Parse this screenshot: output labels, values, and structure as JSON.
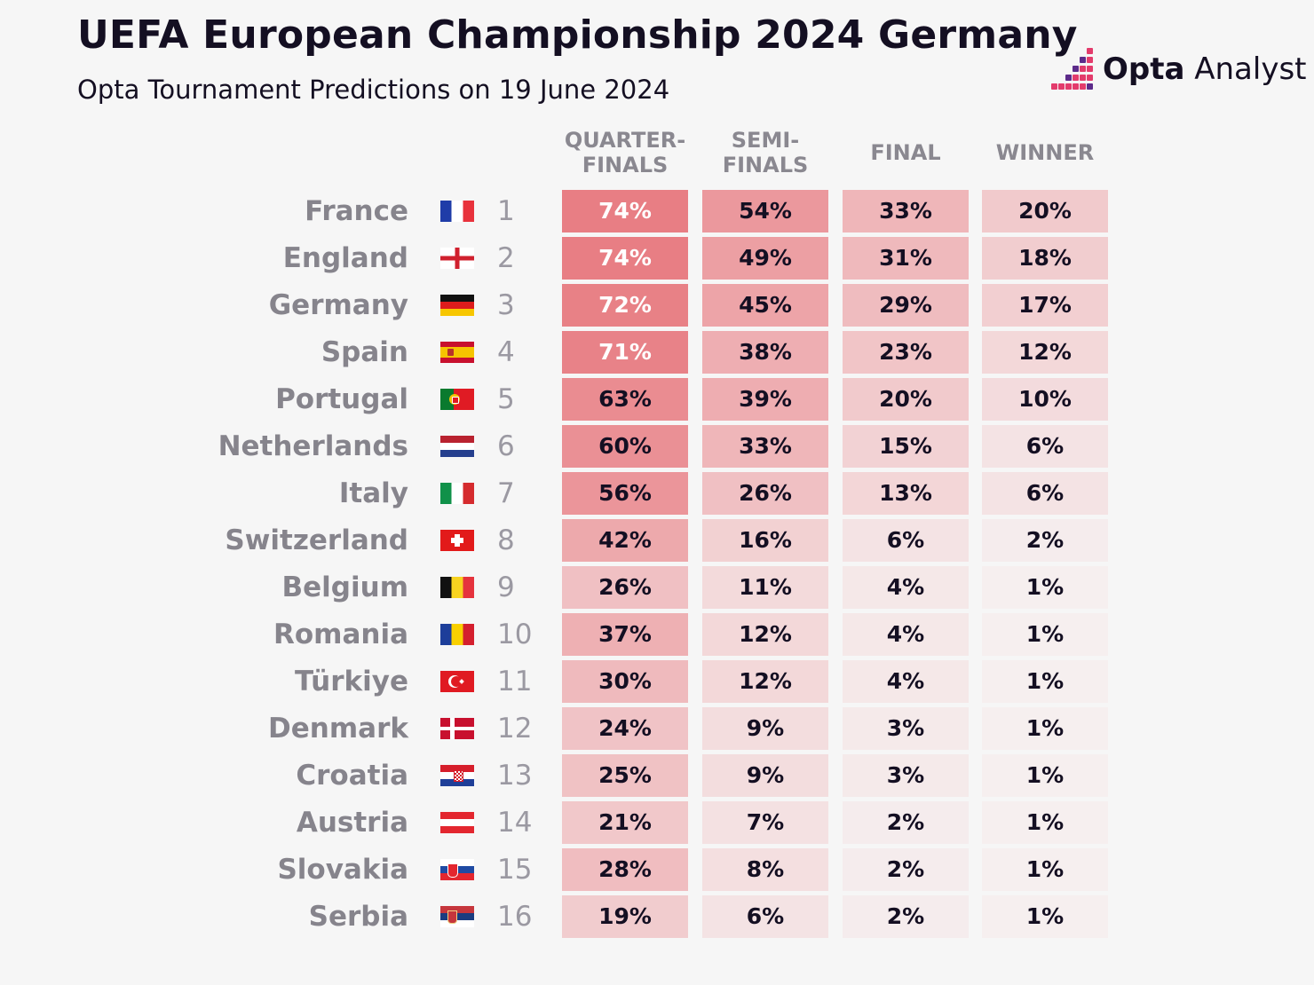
{
  "title": "UEFA European Championship 2024 Germany",
  "subtitle": "Opta Tournament Predictions on 19 June 2024",
  "logo": {
    "bold": "Opta",
    "light": " Analyst"
  },
  "colors": {
    "background": "#f6f6f6",
    "title_text": "#140f22",
    "cell_scale_low": "#f6f3f3",
    "cell_scale_high": "#e87e84",
    "logo_pink": "#e33b6c",
    "logo_purple": "#5c2b8a"
  },
  "chart_data": {
    "type": "table",
    "columns": [
      "QUARTER-\nFINALS",
      "SEMI-\nFINALS",
      "FINAL",
      "WINNER"
    ],
    "rows": [
      {
        "country": "France",
        "flag": "france-flag",
        "rank": "1",
        "values": [
          "74%",
          "54%",
          "33%",
          "20%"
        ]
      },
      {
        "country": "England",
        "flag": "england-flag",
        "rank": "2",
        "values": [
          "74%",
          "49%",
          "31%",
          "18%"
        ]
      },
      {
        "country": "Germany",
        "flag": "germany-flag",
        "rank": "3",
        "values": [
          "72%",
          "45%",
          "29%",
          "17%"
        ]
      },
      {
        "country": "Spain",
        "flag": "spain-flag",
        "rank": "4",
        "values": [
          "71%",
          "38%",
          "23%",
          "12%"
        ]
      },
      {
        "country": "Portugal",
        "flag": "portugal-flag",
        "rank": "5",
        "values": [
          "63%",
          "39%",
          "20%",
          "10%"
        ]
      },
      {
        "country": "Netherlands",
        "flag": "netherlands-flag",
        "rank": "6",
        "values": [
          "60%",
          "33%",
          "15%",
          "6%"
        ]
      },
      {
        "country": "Italy",
        "flag": "italy-flag",
        "rank": "7",
        "values": [
          "56%",
          "26%",
          "13%",
          "6%"
        ]
      },
      {
        "country": "Switzerland",
        "flag": "switzerland-flag",
        "rank": "8",
        "values": [
          "42%",
          "16%",
          "6%",
          "2%"
        ]
      },
      {
        "country": "Belgium",
        "flag": "belgium-flag",
        "rank": "9",
        "values": [
          "26%",
          "11%",
          "4%",
          "1%"
        ]
      },
      {
        "country": "Romania",
        "flag": "romania-flag",
        "rank": "10",
        "values": [
          "37%",
          "12%",
          "4%",
          "1%"
        ]
      },
      {
        "country": "Türkiye",
        "flag": "turkiye-flag",
        "rank": "11",
        "values": [
          "30%",
          "12%",
          "4%",
          "1%"
        ]
      },
      {
        "country": "Denmark",
        "flag": "denmark-flag",
        "rank": "12",
        "values": [
          "24%",
          "9%",
          "3%",
          "1%"
        ]
      },
      {
        "country": "Croatia",
        "flag": "croatia-flag",
        "rank": "13",
        "values": [
          "25%",
          "9%",
          "3%",
          "1%"
        ]
      },
      {
        "country": "Austria",
        "flag": "austria-flag",
        "rank": "14",
        "values": [
          "21%",
          "7%",
          "2%",
          "1%"
        ]
      },
      {
        "country": "Slovakia",
        "flag": "slovakia-flag",
        "rank": "15",
        "values": [
          "28%",
          "8%",
          "2%",
          "1%"
        ]
      },
      {
        "country": "Serbia",
        "flag": "serbia-flag",
        "rank": "16",
        "values": [
          "19%",
          "6%",
          "2%",
          "1%"
        ]
      }
    ]
  }
}
